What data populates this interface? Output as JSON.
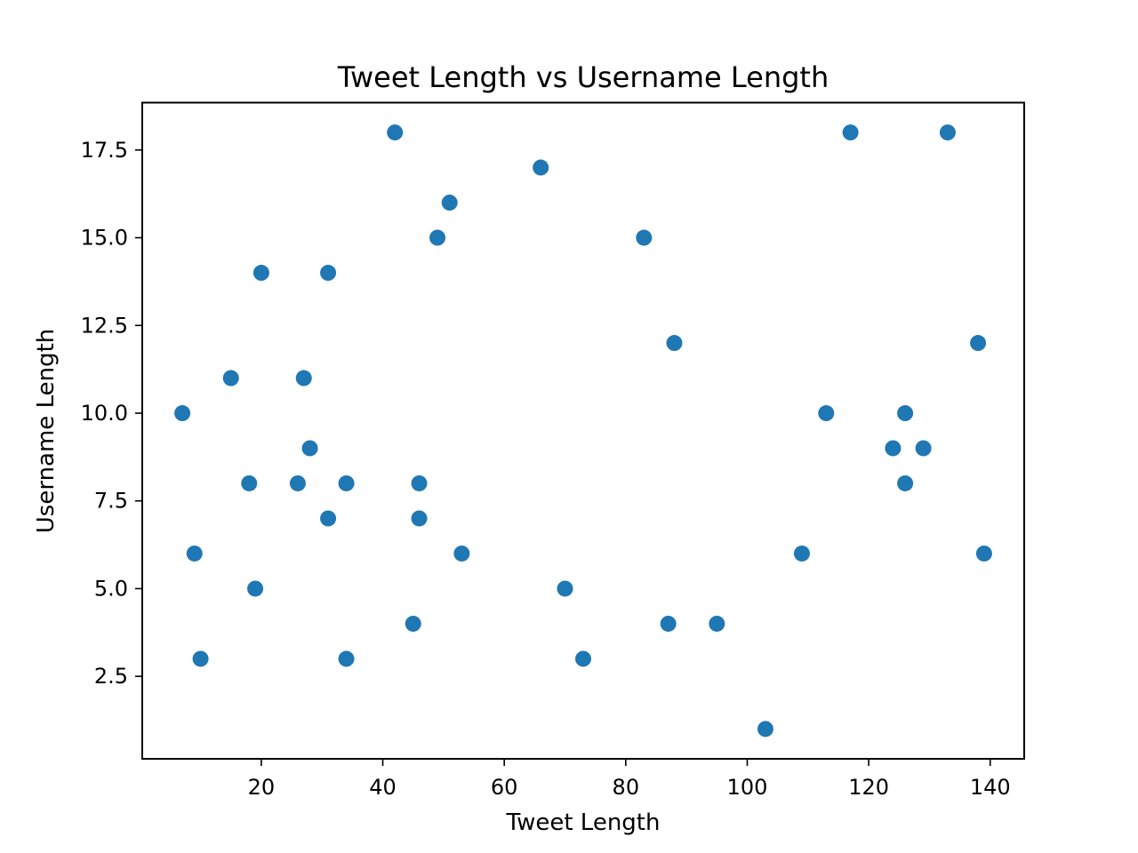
{
  "chart_data": {
    "type": "scatter",
    "title": "Tweet Length vs Username Length",
    "xlabel": "Tweet Length",
    "ylabel": "Username Length",
    "xlim": [
      0.4,
      145.6
    ],
    "ylim": [
      0.15,
      18.85
    ],
    "xticks": [
      20,
      40,
      60,
      80,
      100,
      120,
      140
    ],
    "xtick_labels": [
      "20",
      "40",
      "60",
      "80",
      "100",
      "120",
      "140"
    ],
    "yticks": [
      2.5,
      5.0,
      7.5,
      10.0,
      12.5,
      15.0,
      17.5
    ],
    "ytick_labels": [
      "2.5",
      "5.0",
      "7.5",
      "10.0",
      "12.5",
      "15.0",
      "17.5"
    ],
    "grid": false,
    "marker_color": "#1f77b4",
    "series": [
      {
        "points": [
          [
            7,
            10
          ],
          [
            9,
            6
          ],
          [
            10,
            3
          ],
          [
            15,
            11
          ],
          [
            18,
            8
          ],
          [
            19,
            5
          ],
          [
            20,
            14
          ],
          [
            26,
            8
          ],
          [
            27,
            11
          ],
          [
            28,
            9
          ],
          [
            31,
            14
          ],
          [
            31,
            7
          ],
          [
            34,
            8
          ],
          [
            34,
            3
          ],
          [
            42,
            18
          ],
          [
            45,
            4
          ],
          [
            46,
            8
          ],
          [
            46,
            7
          ],
          [
            49,
            15
          ],
          [
            51,
            16
          ],
          [
            53,
            6
          ],
          [
            66,
            17
          ],
          [
            70,
            5
          ],
          [
            73,
            3
          ],
          [
            83,
            15
          ],
          [
            87,
            4
          ],
          [
            88,
            12
          ],
          [
            95,
            4
          ],
          [
            103,
            1
          ],
          [
            109,
            6
          ],
          [
            113,
            10
          ],
          [
            117,
            18
          ],
          [
            124,
            9
          ],
          [
            126,
            10
          ],
          [
            126,
            8
          ],
          [
            129,
            9
          ],
          [
            133,
            18
          ],
          [
            138,
            12
          ],
          [
            139,
            6
          ]
        ]
      }
    ]
  }
}
